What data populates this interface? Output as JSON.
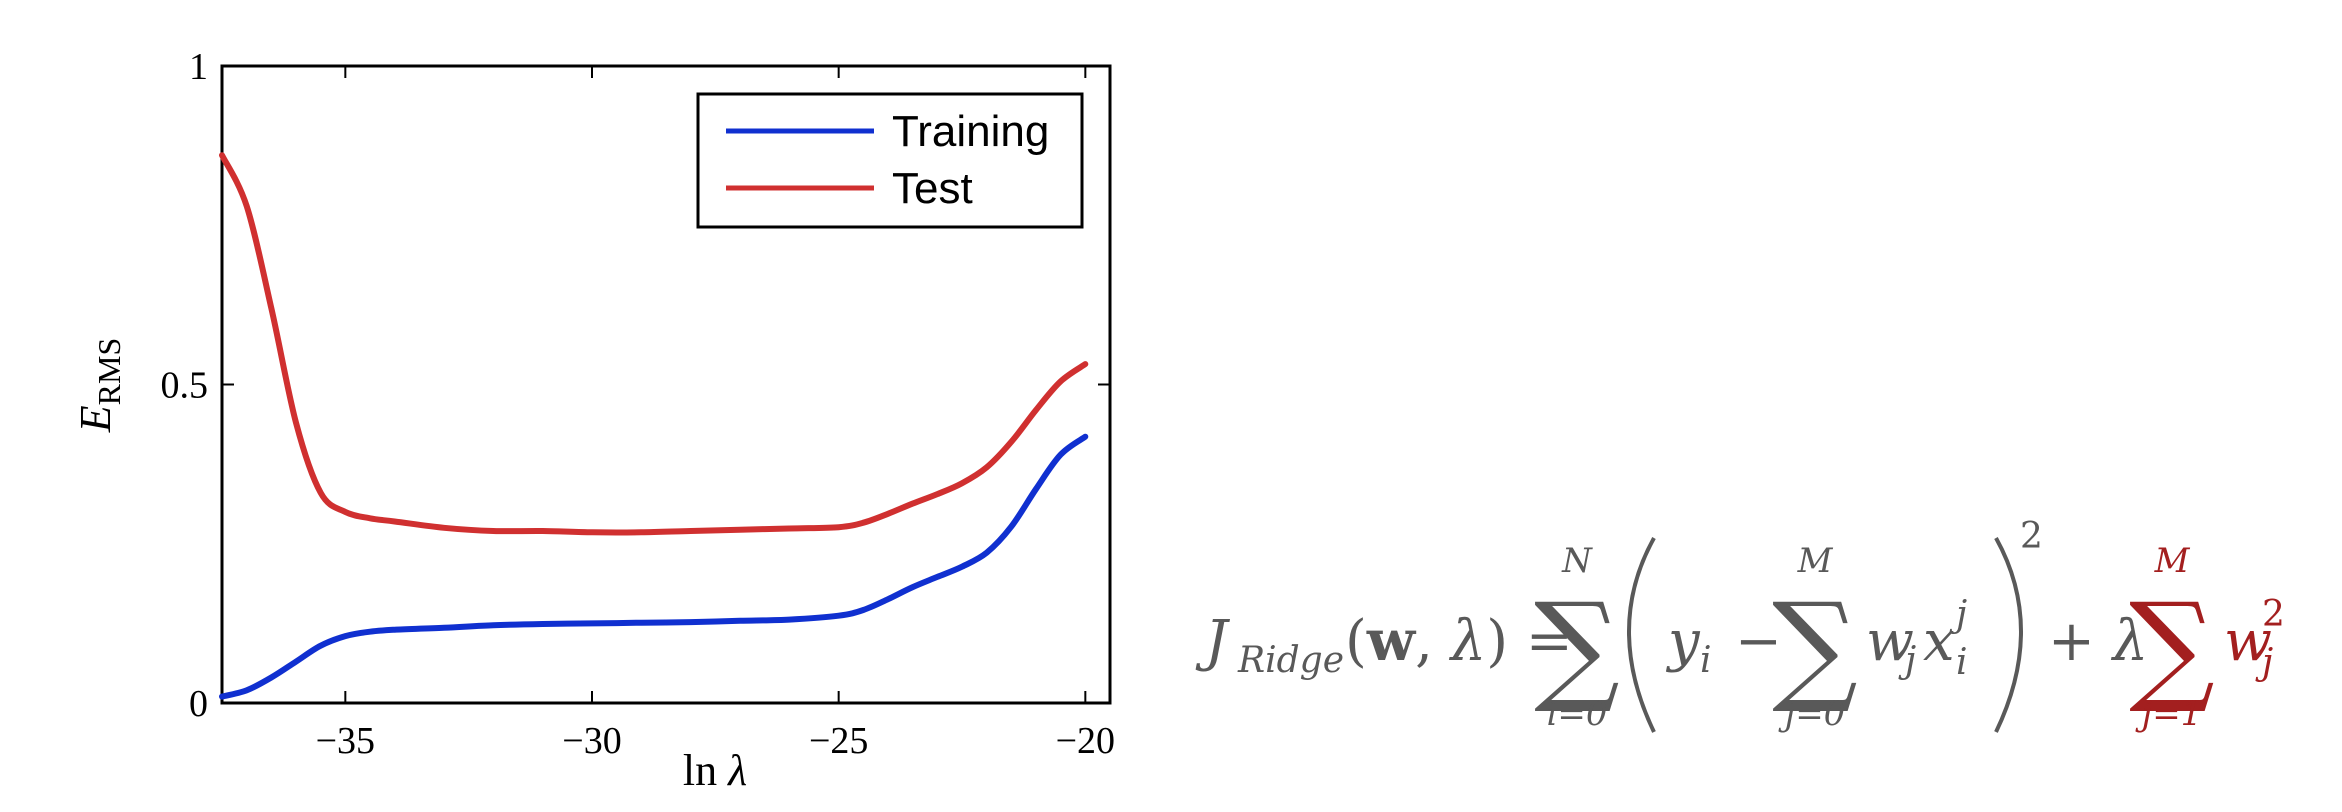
{
  "chart_data": {
    "type": "line",
    "xlabel": "ln λ",
    "ylabel": "E",
    "ylabel_subscript": "RMS",
    "xlim": [
      -37.5,
      -19.5
    ],
    "ylim": [
      0,
      1
    ],
    "xticks": [
      -35,
      -30,
      -25,
      -20
    ],
    "xtick_labels": [
      "−35",
      "−30",
      "−25",
      "−20"
    ],
    "yticks": [
      0,
      0.5,
      1
    ],
    "ytick_labels": [
      "0",
      "0.5",
      "1"
    ],
    "grid": false,
    "legend_position": "top-right",
    "series": [
      {
        "name": "Training",
        "color": "#1030d0",
        "x": [
          -37.5,
          -37,
          -36.5,
          -36,
          -35.5,
          -35,
          -34.5,
          -34,
          -33,
          -32,
          -31,
          -30,
          -29,
          -28,
          -27,
          -26,
          -25,
          -24.5,
          -24,
          -23.5,
          -23,
          -22.5,
          -22,
          -21.5,
          -21,
          -20.5,
          -20
        ],
        "y": [
          0.01,
          0.02,
          0.04,
          0.065,
          0.09,
          0.105,
          0.112,
          0.115,
          0.118,
          0.122,
          0.124,
          0.125,
          0.126,
          0.127,
          0.129,
          0.131,
          0.137,
          0.146,
          0.163,
          0.182,
          0.198,
          0.214,
          0.236,
          0.277,
          0.336,
          0.39,
          0.418
        ]
      },
      {
        "name": "Test",
        "color": "#d03030",
        "x": [
          -37.5,
          -37,
          -36.5,
          -36,
          -35.5,
          -35,
          -34.5,
          -34,
          -33,
          -32,
          -31,
          -30,
          -29,
          -28,
          -27,
          -26,
          -25,
          -24.5,
          -24,
          -23.5,
          -23,
          -22.5,
          -22,
          -21.5,
          -21,
          -20.5,
          -20
        ],
        "y": [
          0.86,
          0.78,
          0.62,
          0.44,
          0.33,
          0.3,
          0.29,
          0.285,
          0.275,
          0.27,
          0.27,
          0.268,
          0.268,
          0.27,
          0.272,
          0.274,
          0.276,
          0.283,
          0.297,
          0.313,
          0.328,
          0.345,
          0.37,
          0.41,
          0.46,
          0.505,
          0.532
        ]
      }
    ]
  }
}
